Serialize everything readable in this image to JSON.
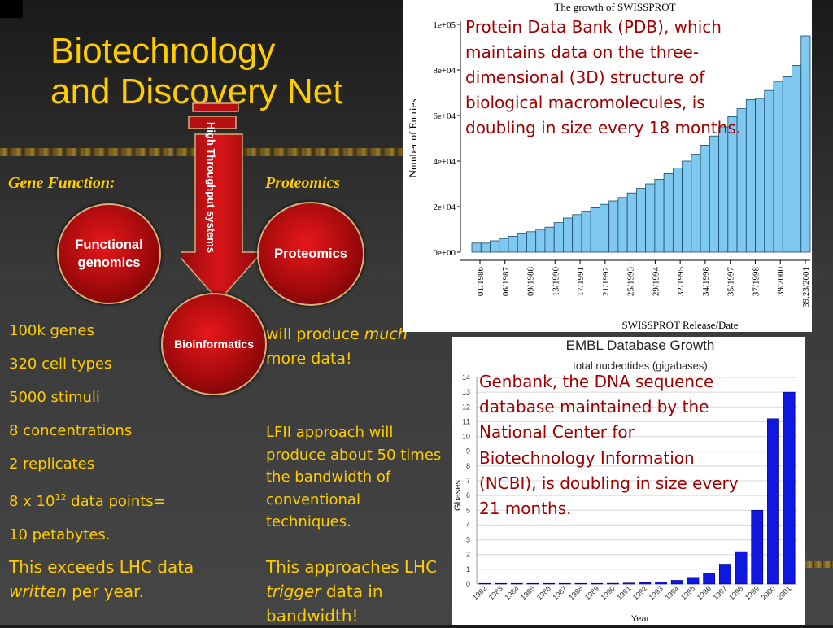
{
  "slide": {
    "title_line1": "Biotechnology",
    "title_line2": "and Discovery Net",
    "left_heading": "Gene Function:",
    "right_heading": "Proteomics",
    "arrow_label": "High Throughput systems",
    "circles": {
      "functional": "Functional genomics",
      "proteomics": "Proteomics",
      "bioinformatics": "Bioinformatics"
    },
    "left_list": [
      {
        "text": "100k genes"
      },
      {
        "text": "320 cell types"
      },
      {
        "text": "5000 stimuli"
      },
      {
        "text": "8 concentrations"
      },
      {
        "text": "2 replicates"
      },
      {
        "text_prefix": "8 x 10",
        "superscript": "12",
        "text_suffix": " data points="
      },
      {
        "text": "10 petabytes."
      }
    ],
    "left_conclusion": {
      "part1": "This exceeds LHC data",
      "italic": "written",
      "part2": " per year."
    },
    "middle_text1": {
      "part1": "will produce ",
      "italic": "much",
      "part2": " more data!"
    },
    "middle_text2": "LFII approach will produce about 50 times the bandwidth of conventional techniques.",
    "middle_text3": {
      "part1": "This approaches LHC ",
      "italic": "trigger",
      "part2": " data in bandwidth!"
    }
  },
  "chart_data": [
    {
      "type": "bar",
      "title": "The growth of SWISSPROT",
      "xlabel": "SWISSPROT Release/Date",
      "ylabel": "Number of Entries",
      "ylim": [
        0,
        100000
      ],
      "yticks": [
        "0e+00",
        "2e+04",
        "4e+04",
        "6e+04",
        "8e+04",
        "1e+05"
      ],
      "x_tick_labels": [
        "01/1986",
        "06/1987",
        "09/1988",
        "13/1990",
        "17/1991",
        "21/1992",
        "25/1993",
        "29/1994",
        "32/1995",
        "34/1998",
        "35/1997",
        "37/1998",
        "39/2000",
        "39.23/2001"
      ],
      "values": [
        4000,
        4000,
        5000,
        6000,
        7000,
        8000,
        9000,
        10000,
        11000,
        13000,
        15000,
        16500,
        18000,
        19500,
        21000,
        22500,
        24000,
        26000,
        28000,
        30000,
        32000,
        34500,
        37000,
        40000,
        43000,
        47000,
        51000,
        55000,
        59500,
        63000,
        67000,
        67500,
        71000,
        75000,
        77000,
        82000,
        95000
      ],
      "bar_color": "#7fc8f0",
      "annotation": "Protein Data Bank (PDB), which maintains data on the three-dimensional (3D) structure of biological macromolecules, is doubling in size every 18 months."
    },
    {
      "type": "bar",
      "title": "EMBL Database Growth",
      "subtitle": "total nucleotides (gigabases)",
      "xlabel": "Year",
      "ylabel": "Gbases",
      "ylim": [
        0,
        14
      ],
      "categories": [
        "1982",
        "1983",
        "1984",
        "1985",
        "1986",
        "1987",
        "1988",
        "1989",
        "1990",
        "1991",
        "1992",
        "1993",
        "1994",
        "1995",
        "1996",
        "1997",
        "1998",
        "1999",
        "2000",
        "2001"
      ],
      "values": [
        0.0,
        0.0,
        0.0,
        0.01,
        0.01,
        0.02,
        0.03,
        0.04,
        0.05,
        0.07,
        0.1,
        0.15,
        0.25,
        0.45,
        0.75,
        1.35,
        2.2,
        5.0,
        11.2,
        13.0
      ],
      "bar_color": "#1018e0",
      "annotation": "Genbank, the DNA sequence database maintained by the National Center for Biotechnology Information (NCBI), is doubling in size every 21 months."
    }
  ]
}
